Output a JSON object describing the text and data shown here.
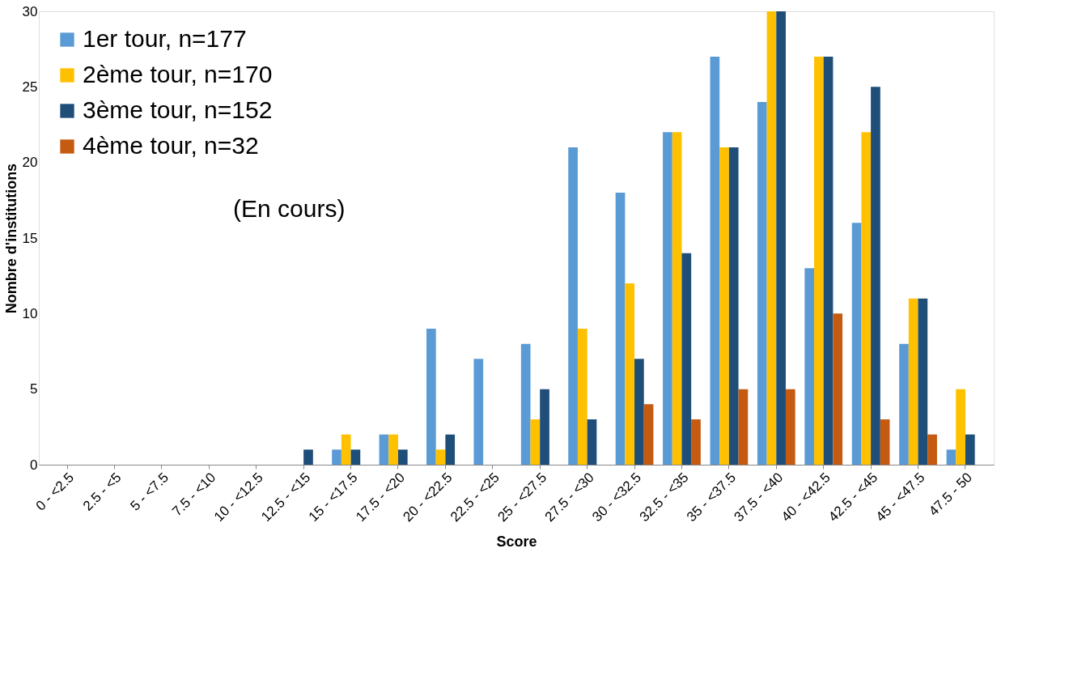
{
  "chart_data": {
    "type": "bar",
    "xlabel": "Score",
    "ylabel": "Nombre d'institutions",
    "categories": [
      "0 - <2.5",
      "2.5 - <5",
      "5 - <7.5",
      "7.5 - <10",
      "10 - <12.5",
      "12.5 - <15",
      "15 - <17.5",
      "17.5 - <20",
      "20 - <22.5",
      "22.5 - <25",
      "25 - <27.5",
      "27.5 - <30",
      "30 - <32.5",
      "32.5 - <35",
      "35 - <37.5",
      "37.5 - <40",
      "40 - <42.5",
      "42.5 - <45",
      "45 - <47.5",
      "47.5 - 50"
    ],
    "series": [
      {
        "name": "1er tour,  n=177",
        "color": "#5b9bd5",
        "values": [
          0,
          0,
          0,
          0,
          0,
          0,
          1,
          2,
          9,
          7,
          8,
          21,
          18,
          22,
          27,
          24,
          13,
          16,
          8,
          1
        ]
      },
      {
        "name": "2ème tour,  n=170",
        "color": "#ffc000",
        "values": [
          0,
          0,
          0,
          0,
          0,
          0,
          2,
          2,
          1,
          0,
          3,
          9,
          12,
          22,
          21,
          30,
          27,
          22,
          11,
          5
        ]
      },
      {
        "name": "3ème tour, n=152",
        "color": "#1f4e79",
        "values": [
          0,
          0,
          0,
          0,
          0,
          1,
          1,
          1,
          2,
          0,
          5,
          3,
          7,
          14,
          21,
          30,
          27,
          25,
          11,
          2
        ]
      },
      {
        "name": "4ème tour, n=32",
        "color": "#c55a11",
        "values": [
          0,
          0,
          0,
          0,
          0,
          0,
          0,
          0,
          0,
          0,
          0,
          0,
          4,
          3,
          5,
          5,
          10,
          3,
          2,
          0
        ]
      }
    ],
    "ylim": [
      0,
      30
    ],
    "yticks": [
      0,
      5,
      10,
      15,
      20,
      25,
      30
    ],
    "grid": false,
    "legend": "top left",
    "annotations": [
      "(En cours)"
    ]
  }
}
